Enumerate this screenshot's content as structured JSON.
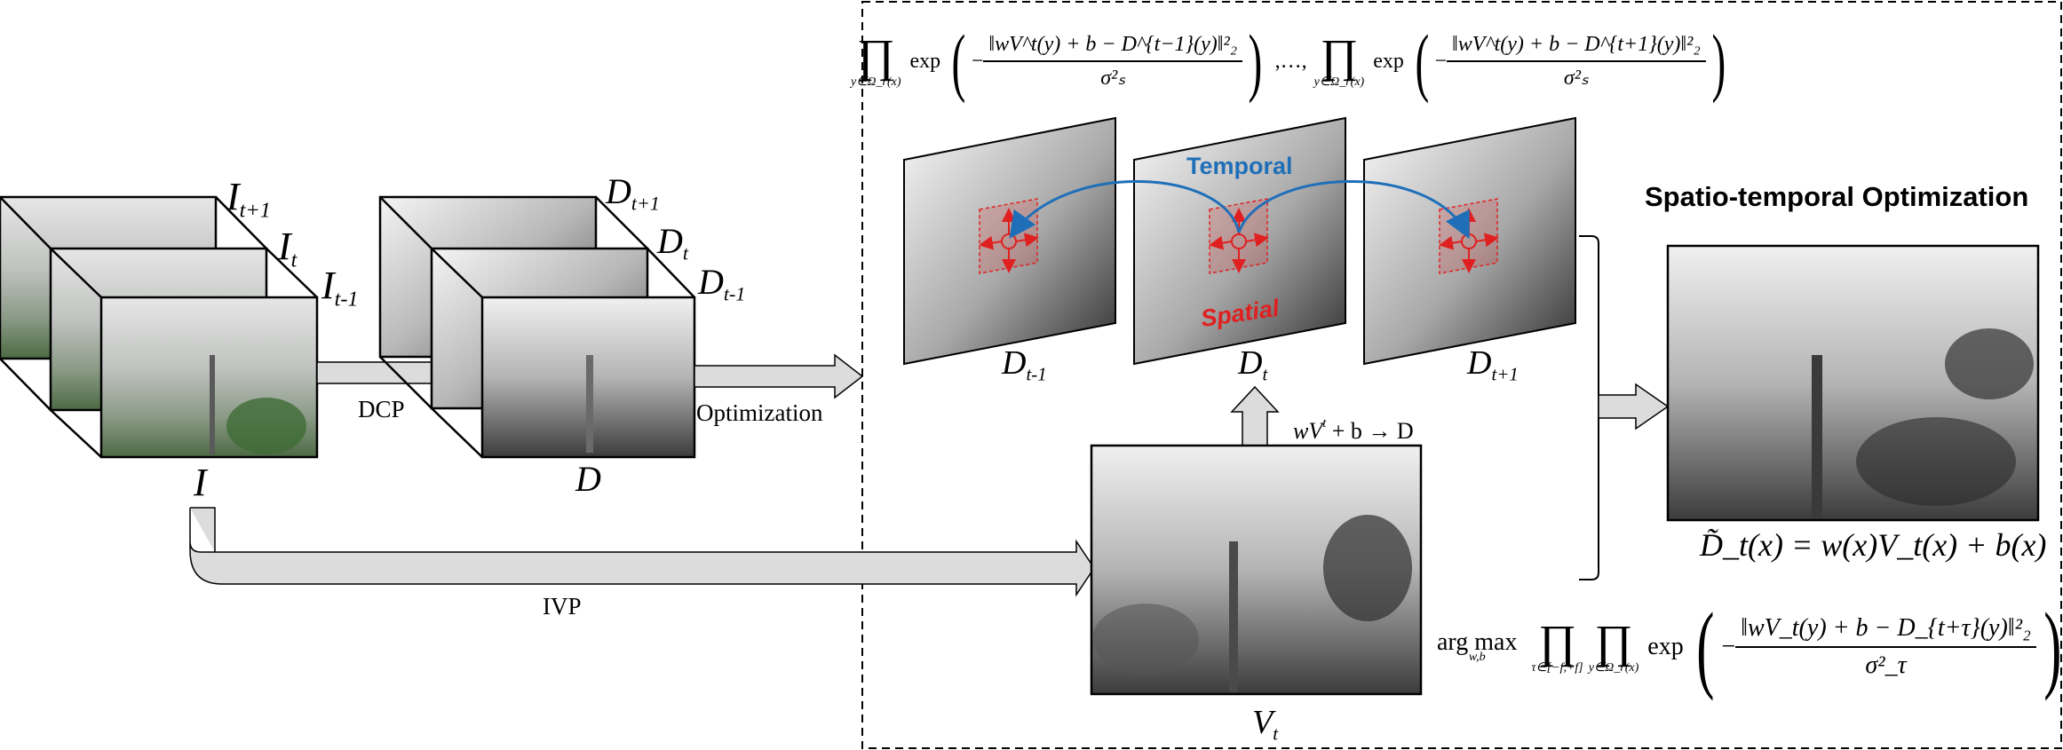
{
  "labels": {
    "I_top": "I",
    "I_top_sub": "t+1",
    "I_mid": "I",
    "I_mid_sub": "t",
    "I_bot": "I",
    "I_bot_sub": "t-1",
    "I_stack": "I",
    "D_top": "D",
    "D_top_sub": "t+1",
    "D_mid": "D",
    "D_mid_sub": "t",
    "D_bot": "D",
    "D_bot_sub": "t-1",
    "D_stack": "D",
    "dcp": "DCP",
    "optimization": "Optimization",
    "ivp": "IVP",
    "temporal": "Temporal",
    "spatial": "Spatial",
    "frame_left": "D",
    "frame_left_sub": "t-1",
    "frame_mid": "D",
    "frame_mid_sub": "t",
    "frame_right": "D",
    "frame_right_sub": "t+1",
    "vt": "V",
    "vt_sub": "t",
    "mapping": "wV",
    "mapping_sup": "t",
    "mapping_rest": " + b → D",
    "title": "Spatio-temporal Optimization"
  },
  "formulas": {
    "top_prod_under": "y∈Ω_r(x)",
    "top_exp": "exp",
    "top_num_left": "‖wV^t(y) + b − D^{t−1}(y)‖²₂",
    "top_num_right": "‖wV^t(y) + b − D^{t+1}(y)‖²₂",
    "top_den": "σ²ₛ",
    "ellipsis": ",…,",
    "result": "D̃_t(x) = w(x)V_t(x) + b(x)",
    "argmax": "arg max",
    "argmax_under": "w,b",
    "bottom_prod1_under": "τ∈[−f,+f]",
    "bottom_prod2_under": "y∈Ω_r(x)",
    "bottom_exp": "exp",
    "bottom_num": "‖wV_t(y) + b − D_{t+τ}(y)‖²₂",
    "bottom_den": "σ²_τ"
  },
  "colors": {
    "temporal": "#1f6fb8",
    "spatial": "#e02020",
    "arrow_fill": "#dcdcdc"
  }
}
